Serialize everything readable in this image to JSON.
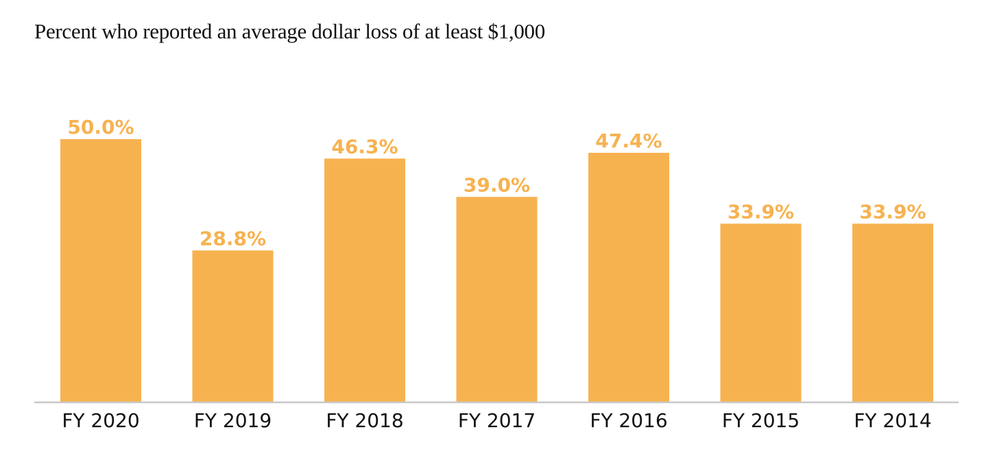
{
  "chart_data": {
    "type": "bar",
    "title": "Percent who reported an average dollar loss of at least $1,000",
    "categories": [
      "FY 2020",
      "FY 2019",
      "FY 2018",
      "FY 2017",
      "FY 2016",
      "FY 2015",
      "FY 2014"
    ],
    "values": [
      50.0,
      28.8,
      46.3,
      39.0,
      47.4,
      33.9,
      33.9
    ],
    "data_labels": [
      "50.0%",
      "28.8%",
      "46.3%",
      "39.0%",
      "47.4%",
      "33.9%",
      "33.9%"
    ],
    "xlabel": "",
    "ylabel": "",
    "ylim": [
      0,
      50
    ],
    "grid": false,
    "y_axis_visible": false,
    "colors": {
      "bar": "#F7B250",
      "label": "#F7B250",
      "axis": "#C8C8C8",
      "text": "#111111"
    }
  }
}
